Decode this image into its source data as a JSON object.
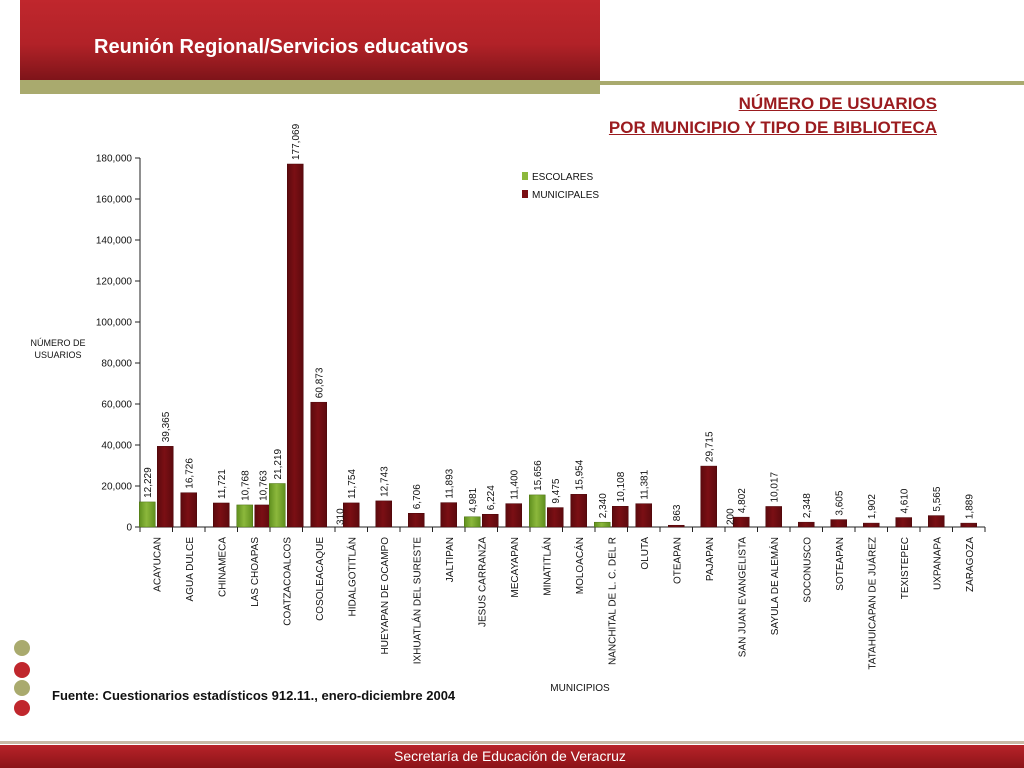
{
  "header": {
    "title": "Reunión Regional/Servicios educativos"
  },
  "colors": {
    "brand_red": "#b22228",
    "olive": "#a9aa6e",
    "escolares": "#8cb83c",
    "municipales": "#7b0f14"
  },
  "chart_title": {
    "line1": "NÚMERO DE USUARIOS",
    "line2": "POR MUNICIPIO Y TIPO DE BIBLIOTECA"
  },
  "chart_data": {
    "type": "bar",
    "categories": [
      "ACAYUCAN",
      "AGUA DULCE",
      "CHINAMECA",
      "LAS CHOAPAS",
      "COATZACOALCOS",
      "COSOLEACAQUE",
      "HIDALGOTITLÁN",
      "HUEYAPAN DE OCAMPO",
      "IXHUATLÁN DEL SURESTE",
      "JALTIPAN",
      "JESUS CARRANZA",
      "MECAYAPAN",
      "MINATITLÁN",
      "MOLOACÁN",
      "NANCHITAL DE L. C. DEL R",
      "OLUTA",
      "OTEAPAN",
      "PAJAPAN",
      "SAN JUAN EVANGELISTA",
      "SAYULA DE ALEMÁN",
      "SOCONUSCO",
      "SOTEAPAN",
      "TATAHUICAPAN DE JUÁREZ",
      "TEXISTEPEC",
      "UXPANAPA",
      "ZARAGOZA"
    ],
    "series": [
      {
        "name": "ESCOLARES",
        "values": [
          12229,
          null,
          null,
          10768,
          21219,
          null,
          null,
          null,
          null,
          null,
          4981,
          null,
          15656,
          null,
          2340,
          null,
          null,
          null,
          null,
          null,
          null,
          null,
          null,
          null,
          null,
          null
        ],
        "labels": [
          "12,229",
          "",
          "",
          "10,768",
          "21,219",
          "",
          "",
          "",
          "",
          "",
          "4,981",
          "",
          "15,656",
          "",
          "2,340",
          "",
          "",
          "",
          "",
          "",
          "",
          "",
          "",
          "",
          "",
          ""
        ]
      },
      {
        "name": "MUNICIPALES",
        "values": [
          39365,
          16726,
          11721,
          10763,
          177069,
          60873,
          11754,
          12743,
          6706,
          11893,
          6224,
          11400,
          9475,
          15954,
          10108,
          11381,
          863,
          29715,
          4802,
          10017,
          2348,
          3605,
          1902,
          4610,
          5565,
          1889
        ],
        "labels": [
          "39,365",
          "16,726",
          "11,721",
          "10,763",
          "177,069",
          "60,873",
          "11,754",
          "12,743",
          "6,706",
          "11,893",
          "6,224",
          "11,400",
          "9,475",
          "15,954",
          "10,108",
          "11,381",
          "863",
          "29,715",
          "4,802",
          "10,017",
          "2,348",
          "3,605",
          "1,902",
          "4,610",
          "5,565",
          "1,889"
        ]
      }
    ],
    "extra_labels": [
      {
        "category": "HIDALGOTITLÁN",
        "text": "310"
      },
      {
        "category": "SAN JUAN EVANGELISTA",
        "text": "200"
      }
    ],
    "ylim": [
      0,
      180000
    ],
    "yticks": [
      0,
      20000,
      40000,
      60000,
      80000,
      100000,
      120000,
      140000,
      160000,
      180000
    ],
    "ytick_labels": [
      "0",
      "20,000",
      "40,000",
      "60,000",
      "80,000",
      "100,000",
      "120,000",
      "140,000",
      "160,000",
      "180,000"
    ],
    "ylabel_lines": [
      "NÚMERO DE",
      "USUARIOS"
    ],
    "xlabel": "MUNICIPIOS",
    "legend_position": "top-right",
    "grid": false
  },
  "source_note": "Fuente: Cuestionarios estadísticos 912.11., enero-diciembre 2004",
  "footer": {
    "text": "Secretaría de Educación de Veracruz"
  }
}
